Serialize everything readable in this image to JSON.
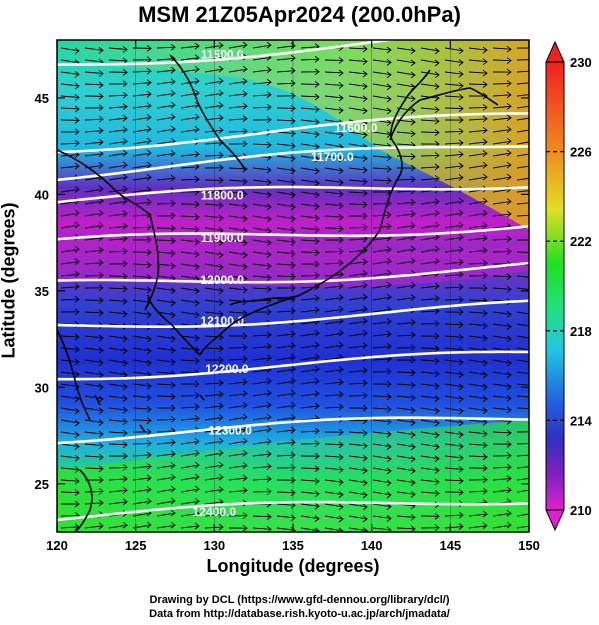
{
  "title": "MSM 21Z05Apr2024 (200.0hPa)",
  "x_axis": {
    "label": "Longitude (degrees)",
    "ticks": [
      "120",
      "125",
      "130",
      "135",
      "140",
      "145",
      "150"
    ]
  },
  "y_axis": {
    "label": "Latitude  (degrees)",
    "ticks": [
      "25",
      "30",
      "35",
      "40",
      "45"
    ]
  },
  "colorbar": {
    "ticks": [
      "230",
      "226",
      "222",
      "218",
      "214",
      "210"
    ],
    "min": 210,
    "max": 230
  },
  "contour_labels": [
    "11500.0",
    "11600.0",
    "11700.0",
    "11800.0",
    "11900.0",
    "12000.0",
    "12100.0",
    "12200.0",
    "12300.0",
    "12400.0"
  ],
  "credits": {
    "line1": "Drawing by DCL (https://www.gfd-dennou.org/library/dcl/)",
    "line2": "Data from http://database.rish.kyoto-u.ac.jp/arch/jmadata/"
  },
  "colors": {
    "magenta": "#d020d0",
    "purple": "#6020c0",
    "blue": "#2040e0",
    "cyan": "#20c8e0",
    "green": "#20e020",
    "yellow": "#e0e020",
    "orange": "#f08020",
    "red": "#f02020"
  },
  "chart_data": {
    "type": "map",
    "projection": "lon-lat",
    "xlim": [
      120,
      150
    ],
    "ylim": [
      22.5,
      48
    ],
    "fields": {
      "shading": "temperature (K) 210-230",
      "contours": "geopotential height (m)",
      "vectors": "wind"
    },
    "contours": [
      {
        "value": 11500.0,
        "label_lon": 130.5,
        "label_lat": 47.3
      },
      {
        "value": 11600.0,
        "label_lon": 139.0,
        "label_lat": 43.5
      },
      {
        "value": 11700.0,
        "label_lon": 137.5,
        "label_lat": 42.0
      },
      {
        "value": 11800.0,
        "label_lon": 130.5,
        "label_lat": 40.0
      },
      {
        "value": 11900.0,
        "label_lon": 130.5,
        "label_lat": 37.8
      },
      {
        "value": 12000.0,
        "label_lon": 130.5,
        "label_lat": 35.6
      },
      {
        "value": 12100.0,
        "label_lon": 130.5,
        "label_lat": 33.5
      },
      {
        "value": 12200.0,
        "label_lon": 130.8,
        "label_lat": 31.0
      },
      {
        "value": 12300.0,
        "label_lon": 131.0,
        "label_lat": 27.8
      },
      {
        "value": 12400.0,
        "label_lon": 130.0,
        "label_lat": 23.6
      }
    ]
  }
}
